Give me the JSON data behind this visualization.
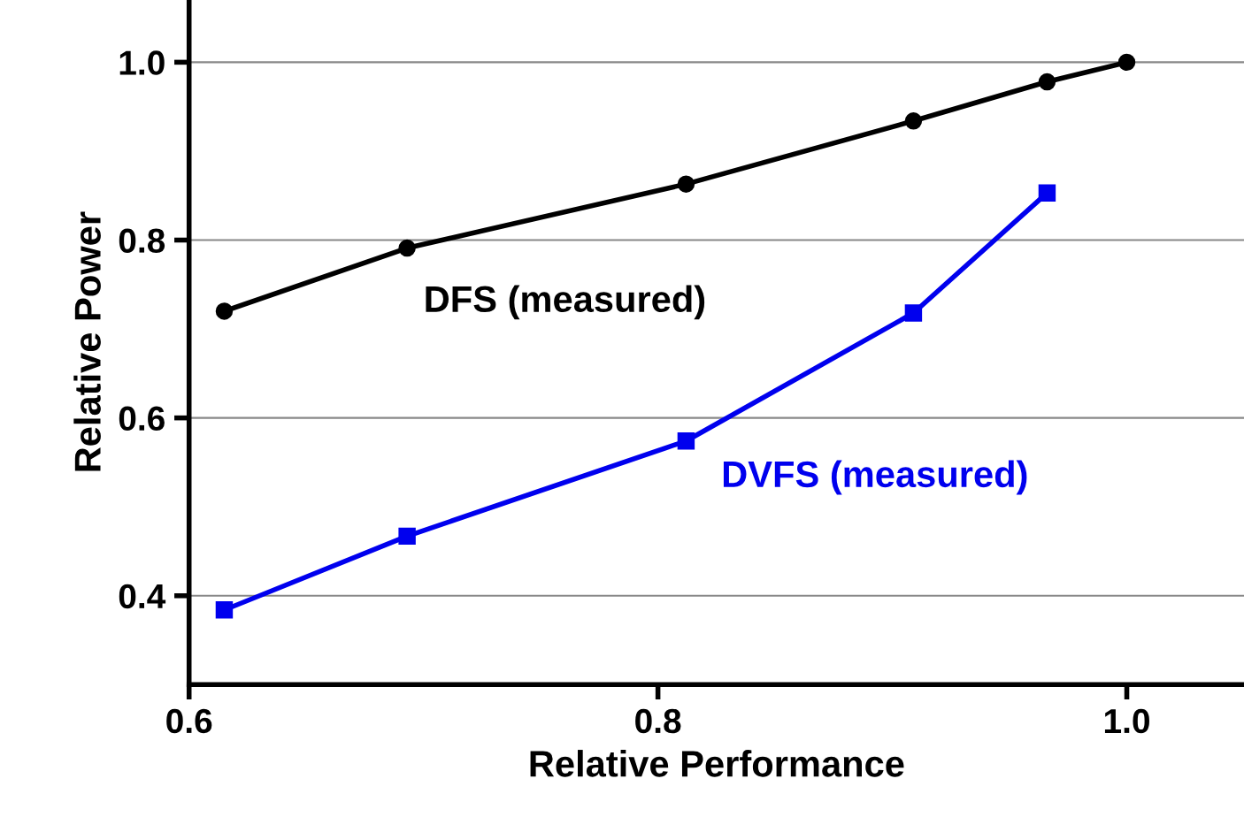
{
  "chart_data": {
    "type": "line",
    "xlabel": "Relative Performance",
    "ylabel": "Relative Power",
    "xlim": [
      0.6,
      1.05
    ],
    "xticks": [
      {
        "value": 0.6,
        "label": "0.6"
      },
      {
        "value": 0.8,
        "label": "0.8"
      },
      {
        "value": 1.0,
        "label": "1.0"
      }
    ],
    "ylim": [
      0.3,
      1.07
    ],
    "yticks": [
      {
        "value": 0.4,
        "label": "0.4"
      },
      {
        "value": 0.6,
        "label": "0.6"
      },
      {
        "value": 0.8,
        "label": "0.8"
      },
      {
        "value": 1.0,
        "label": "1.0"
      }
    ],
    "grid": "y",
    "legend": false,
    "series": [
      {
        "name": "DFS (measured)",
        "color": "#000000",
        "marker": "circle",
        "x": [
          0.615,
          0.693,
          0.812,
          0.909,
          0.966,
          1.0
        ],
        "values": [
          0.72,
          0.791,
          0.863,
          0.934,
          0.978,
          1.0
        ]
      },
      {
        "name": "DVFS (measured)",
        "color": "#0000ee",
        "marker": "square",
        "x": [
          0.615,
          0.693,
          0.812,
          0.909,
          0.966
        ],
        "values": [
          0.384,
          0.467,
          0.574,
          0.718,
          0.853
        ]
      }
    ]
  }
}
